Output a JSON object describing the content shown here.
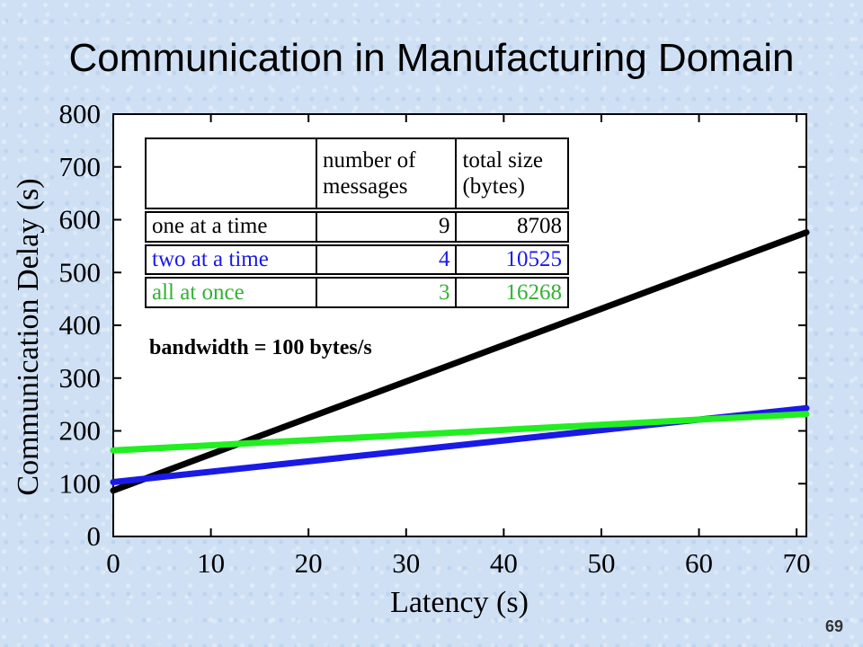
{
  "slide": {
    "title": "Communication in Manufacturing Domain",
    "page_number": "69"
  },
  "table": {
    "headers": [
      "",
      "number of messages",
      "total size (bytes)"
    ],
    "rows": [
      {
        "label": "one at a time",
        "messages": "9",
        "size": "8708",
        "color": "#000000"
      },
      {
        "label": "two at a time",
        "messages": "4",
        "size": "10525",
        "color": "#1a1ae6"
      },
      {
        "label": "all at once",
        "messages": "3",
        "size": "16268",
        "color": "#33b233"
      }
    ]
  },
  "chart_data": {
    "type": "line",
    "title": "",
    "xlabel": "Latency (s)",
    "ylabel": "Communication Delay (s)",
    "xlim": [
      0,
      71
    ],
    "ylim": [
      0,
      800
    ],
    "xticks": [
      0,
      10,
      20,
      30,
      40,
      50,
      60,
      70
    ],
    "yticks": [
      0,
      100,
      200,
      300,
      400,
      500,
      600,
      700,
      800
    ],
    "annotation": "bandwidth = 100 bytes/s",
    "series": [
      {
        "color": "#000000",
        "x": [
          0,
          71
        ],
        "y": [
          87,
          576
        ]
      },
      {
        "color": "#1a1ae6",
        "x": [
          0,
          71
        ],
        "y": [
          103,
          243
        ]
      },
      {
        "color": "#22ee22",
        "x": [
          0,
          71
        ],
        "y": [
          163,
          232
        ]
      }
    ]
  }
}
